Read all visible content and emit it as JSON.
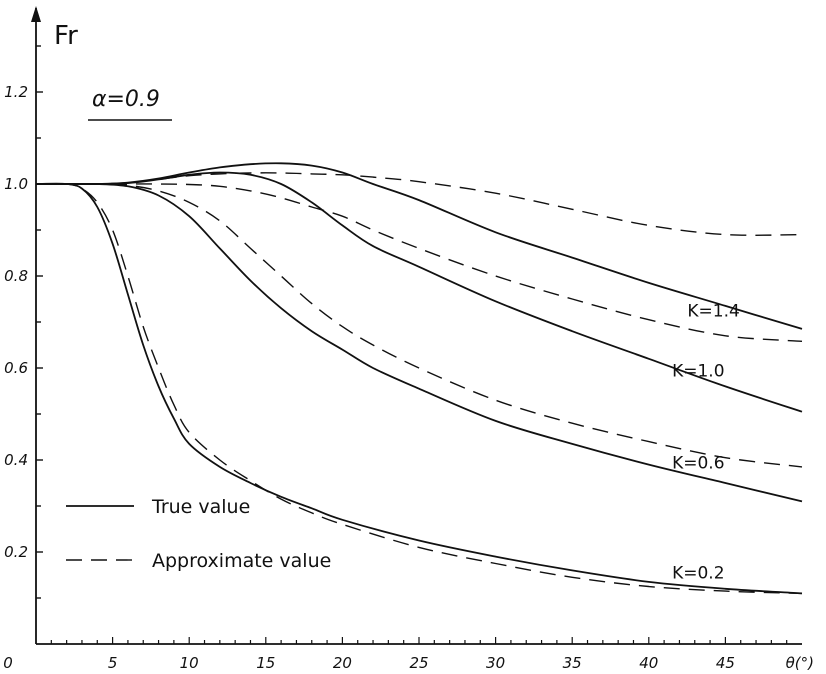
{
  "chart_data": {
    "type": "line",
    "ylabel": "Fr",
    "xlabel": "θ(°)",
    "annotation": "α=0.9",
    "xlim": [
      0,
      50
    ],
    "ylim": [
      0,
      1.4
    ],
    "x_ticks": [
      0,
      5,
      10,
      15,
      20,
      25,
      30,
      35,
      40,
      45
    ],
    "x_tick_labels": [
      "0",
      "5",
      "10",
      "15",
      "20",
      "25",
      "30",
      "35",
      "40",
      "45"
    ],
    "y_ticks": [
      0.2,
      0.4,
      0.6,
      0.8,
      1.0,
      1.2
    ],
    "y_tick_labels": [
      "0.2",
      "0.4",
      "0.6",
      "0.8",
      "1.0",
      "1.2"
    ],
    "grid": false,
    "legend": {
      "placement": "bottom-left",
      "entries": [
        {
          "label": "True value",
          "style": "solid"
        },
        {
          "label": "Approximate value",
          "style": "dashed"
        }
      ]
    },
    "series": [
      {
        "name": "K=1.4",
        "style": "solid",
        "K": 1.4,
        "x": [
          0,
          2,
          4,
          6,
          8,
          10,
          12,
          14,
          16,
          18,
          20,
          22,
          25,
          30,
          35,
          40,
          45,
          50
        ],
        "y": [
          1.0,
          1.0,
          1.0,
          1.003,
          1.012,
          1.025,
          1.036,
          1.043,
          1.045,
          1.04,
          1.025,
          1.0,
          0.965,
          0.895,
          0.84,
          0.785,
          0.735,
          0.685
        ]
      },
      {
        "name": "K=1.4",
        "style": "dashed",
        "K": 1.4,
        "x": [
          0,
          2,
          4,
          6,
          8,
          10,
          12,
          14,
          16,
          18,
          20,
          22,
          25,
          30,
          35,
          40,
          45,
          50
        ],
        "y": [
          1.0,
          1.0,
          1.0,
          1.003,
          1.01,
          1.018,
          1.022,
          1.024,
          1.024,
          1.022,
          1.02,
          1.015,
          1.005,
          0.98,
          0.945,
          0.91,
          0.89,
          0.89
        ]
      },
      {
        "name": "K=1.0",
        "style": "solid",
        "K": 1.0,
        "x": [
          0,
          2,
          4,
          6,
          8,
          10,
          12,
          14,
          16,
          18,
          20,
          22,
          25,
          30,
          35,
          40,
          45,
          50
        ],
        "y": [
          1.0,
          1.0,
          1.0,
          1.002,
          1.01,
          1.02,
          1.025,
          1.02,
          1.0,
          0.96,
          0.91,
          0.865,
          0.82,
          0.745,
          0.68,
          0.62,
          0.56,
          0.505
        ]
      },
      {
        "name": "K=1.0",
        "style": "dashed",
        "K": 1.0,
        "x": [
          0,
          2,
          4,
          6,
          8,
          10,
          12,
          14,
          16,
          18,
          20,
          22,
          25,
          30,
          35,
          40,
          45,
          50
        ],
        "y": [
          1.0,
          1.0,
          1.0,
          1.0,
          1.0,
          0.999,
          0.995,
          0.985,
          0.97,
          0.95,
          0.93,
          0.9,
          0.86,
          0.8,
          0.75,
          0.705,
          0.67,
          0.658
        ]
      },
      {
        "name": "K=0.6",
        "style": "solid",
        "K": 0.6,
        "x": [
          0,
          2,
          4,
          6,
          8,
          10,
          12,
          14,
          16,
          18,
          20,
          22,
          25,
          30,
          35,
          40,
          45,
          50
        ],
        "y": [
          1.0,
          1.0,
          1.0,
          0.995,
          0.975,
          0.93,
          0.86,
          0.79,
          0.73,
          0.68,
          0.64,
          0.6,
          0.555,
          0.485,
          0.435,
          0.39,
          0.35,
          0.31
        ]
      },
      {
        "name": "K=0.6",
        "style": "dashed",
        "K": 0.6,
        "x": [
          0,
          2,
          4,
          6,
          8,
          10,
          12,
          14,
          16,
          18,
          20,
          22,
          25,
          30,
          35,
          40,
          45,
          50
        ],
        "y": [
          1.0,
          1.0,
          1.0,
          0.997,
          0.985,
          0.96,
          0.92,
          0.86,
          0.8,
          0.74,
          0.69,
          0.65,
          0.6,
          0.53,
          0.48,
          0.44,
          0.405,
          0.385
        ]
      },
      {
        "name": "K=0.2",
        "style": "solid",
        "K": 0.2,
        "x": [
          0,
          2,
          3,
          4,
          5,
          6,
          7,
          8,
          9,
          10,
          12,
          14,
          16,
          18,
          20,
          25,
          30,
          35,
          40,
          45,
          50
        ],
        "y": [
          1.0,
          1.0,
          0.99,
          0.95,
          0.87,
          0.76,
          0.65,
          0.56,
          0.49,
          0.435,
          0.385,
          0.35,
          0.32,
          0.295,
          0.27,
          0.225,
          0.19,
          0.16,
          0.135,
          0.12,
          0.11
        ]
      },
      {
        "name": "K=0.2",
        "style": "dashed",
        "K": 0.2,
        "x": [
          0,
          2,
          3,
          4,
          5,
          6,
          7,
          8,
          9,
          10,
          12,
          14,
          16,
          18,
          20,
          25,
          30,
          35,
          40,
          45,
          50
        ],
        "y": [
          1.0,
          1.0,
          0.99,
          0.96,
          0.9,
          0.8,
          0.69,
          0.6,
          0.52,
          0.46,
          0.4,
          0.355,
          0.315,
          0.285,
          0.26,
          0.21,
          0.175,
          0.145,
          0.125,
          0.115,
          0.11
        ]
      }
    ],
    "curve_labels": [
      {
        "text": "K=1.4",
        "near_x": 45,
        "near_y": 0.725
      },
      {
        "text": "K=1.0",
        "near_x": 44,
        "near_y": 0.595
      },
      {
        "text": "K=0.6",
        "near_x": 44,
        "near_y": 0.395
      },
      {
        "text": "K=0.2",
        "near_x": 44,
        "near_y": 0.155
      }
    ]
  }
}
